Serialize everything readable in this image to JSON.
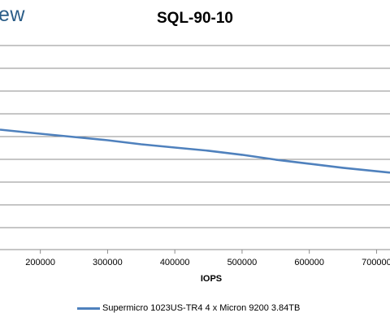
{
  "logo": {
    "text": "ew"
  },
  "chart_data": {
    "type": "line",
    "title": "SQL-90-10",
    "xlabel": "IOPS",
    "ylabel": "",
    "x_ticks": [
      200000,
      300000,
      400000,
      500000,
      600000,
      700000
    ],
    "xlim": [
      140000,
      720000
    ],
    "grid": true,
    "legend_position": "bottom",
    "series": [
      {
        "name": "Supermicro 1023US-TR4 4 x Micron 9200 3.84TB",
        "color": "#4f81bd",
        "points": [
          [
            140000,
            0.148
          ],
          [
            200000,
            0.143
          ],
          [
            250000,
            0.139
          ],
          [
            300000,
            0.135
          ],
          [
            350000,
            0.13
          ],
          [
            400000,
            0.126
          ],
          [
            450000,
            0.122
          ],
          [
            500000,
            0.117
          ],
          [
            550000,
            0.111
          ],
          [
            600000,
            0.106
          ],
          [
            650000,
            0.101
          ],
          [
            720000,
            0.095
          ]
        ]
      }
    ],
    "ylim": [
      0,
      0.28
    ]
  }
}
